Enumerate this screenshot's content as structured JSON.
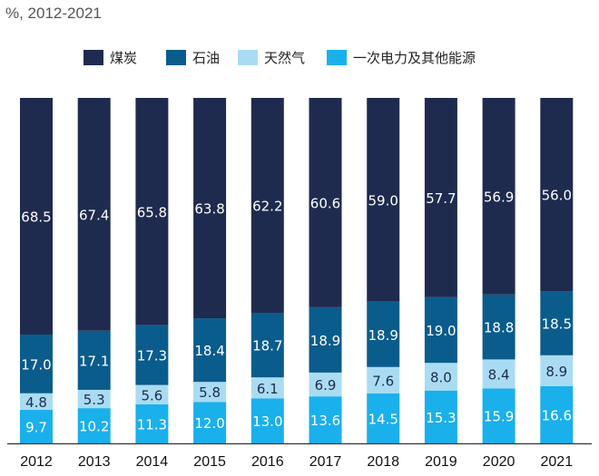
{
  "chart_data": {
    "type": "bar",
    "stacked": true,
    "unit_label": "%, 2012-2021",
    "categories": [
      "2012",
      "2013",
      "2014",
      "2015",
      "2016",
      "2017",
      "2018",
      "2019",
      "2020",
      "2021"
    ],
    "series": [
      {
        "name": "煤炭",
        "color": "#1e2b4f",
        "values": [
          68.5,
          67.4,
          65.8,
          63.8,
          62.2,
          60.6,
          59.0,
          57.7,
          56.9,
          56.0
        ]
      },
      {
        "name": "石油",
        "color": "#0a5c8c",
        "values": [
          17.0,
          17.1,
          17.3,
          18.4,
          18.7,
          18.9,
          18.9,
          19.0,
          18.8,
          18.5
        ]
      },
      {
        "name": "天然气",
        "color": "#a9dcf2",
        "values": [
          4.8,
          5.3,
          5.6,
          5.8,
          6.1,
          6.9,
          7.6,
          8.0,
          8.4,
          8.9
        ]
      },
      {
        "name": "一次电力及其他能源",
        "color": "#1ab0ec",
        "values": [
          9.7,
          10.2,
          11.3,
          12.0,
          13.0,
          13.6,
          14.5,
          15.3,
          15.9,
          16.6
        ]
      }
    ],
    "ylim": [
      0,
      100
    ],
    "legend_position": "top",
    "grid": false,
    "value_labels": true
  }
}
